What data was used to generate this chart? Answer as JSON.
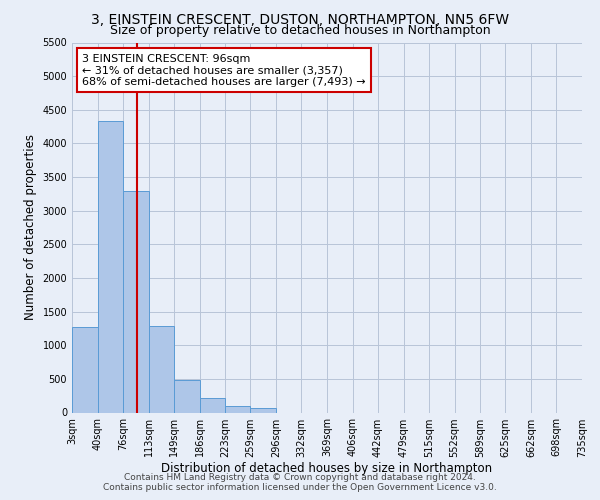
{
  "title": "3, EINSTEIN CRESCENT, DUSTON, NORTHAMPTON, NN5 6FW",
  "subtitle": "Size of property relative to detached houses in Northampton",
  "xlabel": "Distribution of detached houses by size in Northampton",
  "ylabel": "Number of detached properties",
  "footer_line1": "Contains HM Land Registry data © Crown copyright and database right 2024.",
  "footer_line2": "Contains public sector information licensed under the Open Government Licence v3.0.",
  "bin_labels": [
    "3sqm",
    "40sqm",
    "76sqm",
    "113sqm",
    "149sqm",
    "186sqm",
    "223sqm",
    "259sqm",
    "296sqm",
    "332sqm",
    "369sqm",
    "406sqm",
    "442sqm",
    "479sqm",
    "515sqm",
    "552sqm",
    "589sqm",
    "625sqm",
    "662sqm",
    "698sqm",
    "735sqm"
  ],
  "bar_values": [
    1270,
    4330,
    3300,
    1280,
    490,
    210,
    90,
    60,
    0,
    0,
    0,
    0,
    0,
    0,
    0,
    0,
    0,
    0,
    0,
    0
  ],
  "bar_color": "#aec6e8",
  "bar_edge_color": "#5a9bd5",
  "vline_color": "#cc0000",
  "annotation_line1": "3 EINSTEIN CRESCENT: 96sqm",
  "annotation_line2": "← 31% of detached houses are smaller (3,357)",
  "annotation_line3": "68% of semi-detached houses are larger (7,493) →",
  "annotation_box_color": "#ffffff",
  "annotation_box_edge_color": "#cc0000",
  "ylim": [
    0,
    5500
  ],
  "yticks": [
    0,
    500,
    1000,
    1500,
    2000,
    2500,
    3000,
    3500,
    4000,
    4500,
    5000,
    5500
  ],
  "background_color": "#e8eef8",
  "grid_color": "#b8c4d8",
  "title_fontsize": 10,
  "subtitle_fontsize": 9,
  "axis_label_fontsize": 8.5,
  "tick_fontsize": 7,
  "footer_fontsize": 6.5,
  "annotation_fontsize": 8
}
